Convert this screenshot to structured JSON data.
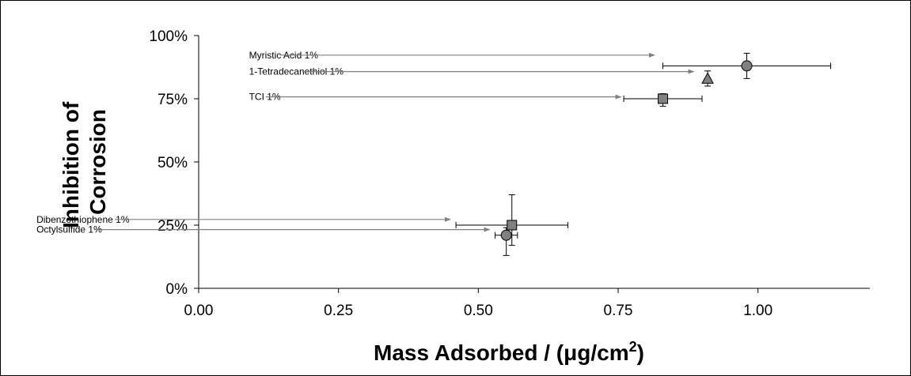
{
  "chart_data": {
    "type": "scatter",
    "title": "",
    "xlabel": "Mass Adsorbed / (μg/cm",
    "xlabel_superscript": "2",
    "xlabel_suffix": ")",
    "ylabel_lines": [
      "Inhibition of",
      "Corrosion"
    ],
    "xlim": [
      0,
      1.2
    ],
    "ylim": [
      0,
      100
    ],
    "x_ticks": [
      {
        "value": 0.0,
        "label": "0.00"
      },
      {
        "value": 0.25,
        "label": "0.25"
      },
      {
        "value": 0.5,
        "label": "0.50"
      },
      {
        "value": 0.75,
        "label": "0.75"
      },
      {
        "value": 1.0,
        "label": "1.00"
      }
    ],
    "y_ticks": [
      {
        "value": 0,
        "label": "0%"
      },
      {
        "value": 25,
        "label": "25%"
      },
      {
        "value": 50,
        "label": "50%"
      },
      {
        "value": 75,
        "label": "75%"
      },
      {
        "value": 100,
        "label": "100%"
      }
    ],
    "grid": false,
    "legend": "none",
    "marker_fill": "#808080",
    "marker_stroke": "#000000",
    "arrow_color": "#808080",
    "points": [
      {
        "label": "Myristic Acid 1%",
        "marker": "circle",
        "x": 0.98,
        "y": 88,
        "xerr": [
          0.83,
          1.13
        ],
        "yerr": [
          83,
          93
        ],
        "label_x": 0.09,
        "label_y": 91,
        "arrow_from_x": 0.145,
        "arrow_to_x": 0.815
      },
      {
        "label": "1-Tetradecanethiol 1%",
        "marker": "triangle",
        "x": 0.91,
        "y": 83,
        "xerr": [
          0.91,
          0.91
        ],
        "yerr": [
          80,
          86
        ],
        "label_x": 0.09,
        "label_y": 84.5,
        "arrow_from_x": 0.185,
        "arrow_to_x": 0.885
      },
      {
        "label": "TCI 1%",
        "marker": "square",
        "x": 0.83,
        "y": 75,
        "xerr": [
          0.76,
          0.9
        ],
        "yerr": [
          72,
          77
        ],
        "label_x": 0.09,
        "label_y": 74.5,
        "arrow_from_x": 0.12,
        "arrow_to_x": 0.755
      },
      {
        "label": "Dibenzothiophene 1%",
        "marker": "square",
        "x": 0.56,
        "y": 25,
        "xerr": [
          0.46,
          0.66
        ],
        "yerr": [
          17,
          37
        ],
        "label_x": -0.29,
        "label_y": 26,
        "arrow_from_x": -0.15,
        "arrow_to_x": 0.45
      },
      {
        "label": "Octylsulfide 1%",
        "marker": "circle",
        "x": 0.55,
        "y": 21,
        "xerr": [
          0.53,
          0.57
        ],
        "yerr": [
          13,
          24
        ],
        "label_x": -0.29,
        "label_y": 22,
        "arrow_from_x": -0.18,
        "arrow_to_x": 0.52
      }
    ]
  }
}
